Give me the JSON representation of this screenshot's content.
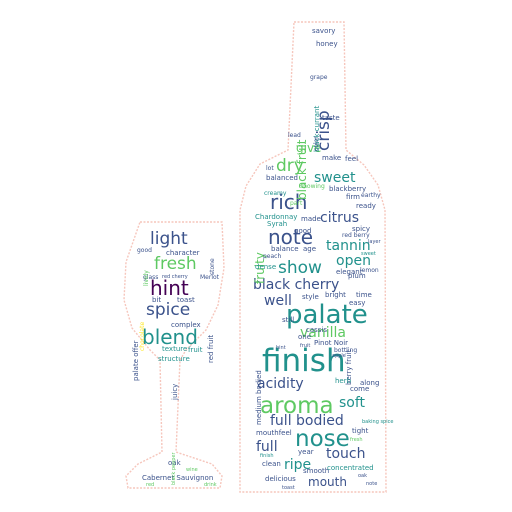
{
  "colors": {
    "background": "#ffffff",
    "outline": "#f6c6bc",
    "palette": [
      "#440154",
      "#3b528b",
      "#21918c",
      "#5ec962",
      "#fde725"
    ]
  },
  "wordcloud": {
    "bottle_words": {
      "finish": "finish",
      "palate": "palate",
      "nose": "nose",
      "aroma": "aroma",
      "note": "note",
      "rich": "rich",
      "show": "show",
      "black_cherry": "black cherry",
      "acidity": "acidity",
      "full_bodied": "full bodied",
      "dry": "dry",
      "sweet": "sweet",
      "open": "open",
      "tannin": "tannin",
      "citrus": "citrus",
      "vanilla": "vanilla",
      "soft": "soft",
      "touch": "touch",
      "mouth": "mouth",
      "ripe": "ripe",
      "full": "full",
      "well": "well",
      "give": "give",
      "crisp": "crisp",
      "black_fruit_v": "black fruit",
      "fruity": "fruity",
      "black_currant": "black currant",
      "berry_fruit": "berry fruit",
      "medium_bodied": "medium bodied",
      "chardonnay": "Chardonnay",
      "syrah": "Syrah",
      "made": "made",
      "balance": "balance",
      "age": "age",
      "balanced": "balanced",
      "blackberry": "blackberry",
      "firm": "firm",
      "earthy": "earthy",
      "spicy": "spicy",
      "red_berry": "red berry",
      "good": "good",
      "pinot_noir": "Pinot Noir",
      "style": "style",
      "bright": "bright",
      "plum": "plum",
      "elegant": "elegant",
      "dense": "dense",
      "peach": "peach",
      "herb": "herb",
      "along": "along",
      "come": "come",
      "smooth": "smooth",
      "concentrated": "concentrated",
      "delicious": "delicious",
      "year": "year",
      "clean": "clean",
      "mouthfeel": "mouthfeel",
      "tight": "tight",
      "ready": "ready",
      "feel": "feel",
      "make": "make",
      "savory": "savory",
      "honey": "honey",
      "taste": "taste",
      "color": "color",
      "lot": "lot",
      "grape": "grape",
      "one": "one",
      "still": "still",
      "easy": "easy",
      "time": "time",
      "cassis": "cassis",
      "baking_spice": "baking spice",
      "lead": "lead",
      "creamy": "creamy",
      "showing": "showing",
      "part": "part",
      "layer": "layer",
      "lemon": "lemon",
      "apple": "apple",
      "bottling": "bottling",
      "sweet_small": "sweet",
      "fresh_small": "fresh",
      "finish_small": "finish",
      "toast_small": "toast",
      "oak_small": "oak",
      "note_small": "note",
      "hint_small": "hint",
      "fruit_small": "fruit"
    },
    "glass_words": {
      "light": "light",
      "fresh": "fresh",
      "hint": "hint",
      "spice": "spice",
      "blend": "blend",
      "character": "character",
      "good": "good",
      "glass": "glass",
      "red_cherry": "red cherry",
      "merlot": "Merlot",
      "bit": "bit",
      "toast": "toast",
      "complex": "complex",
      "red_fruit": "red fruit",
      "palate_offer": "palate offer",
      "texture": "texture",
      "fruit": "fruit",
      "structure": "structure",
      "juicy": "juicy",
      "lively": "lively",
      "chocolate": "chocolate",
      "stone": "stone",
      "oak": "oak",
      "black_pepper": "black pepper",
      "cabernet_sauvignon": "Cabernet Sauvignon",
      "tiny_a": "red",
      "tiny_b": "wine",
      "tiny_c": "drink"
    }
  }
}
